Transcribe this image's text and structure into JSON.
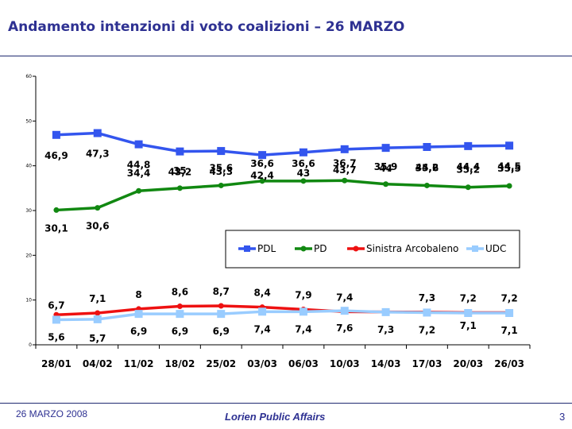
{
  "title": "Andamento intenzioni di voto coalizioni – 26 MARZO",
  "footer": {
    "date": "26 MARZO 2008",
    "brand": "Lorien Public Affairs",
    "page": "3"
  },
  "chart_data": {
    "type": "line",
    "title": "",
    "xlabel": "",
    "ylabel": "",
    "ylim": [
      0,
      60
    ],
    "yticks": [
      "0",
      "10",
      "20",
      "30",
      "40",
      "50",
      "60"
    ],
    "grid": false,
    "legend": "middle",
    "categories": [
      "28/01",
      "04/02",
      "11/02",
      "18/02",
      "25/02",
      "03/03",
      "06/03",
      "10/03",
      "14/03",
      "17/03",
      "20/03",
      "26/03"
    ],
    "series": [
      {
        "name": "PDL",
        "color": "#3355ee",
        "marker": "square",
        "values": [
          46.9,
          47.3,
          44.8,
          43.2,
          43.3,
          42.4,
          43,
          43.7,
          44,
          44.2,
          44.4,
          44.5
        ],
        "labels": [
          "46,9",
          "47,3",
          "44,8",
          "43,2",
          "43,3",
          "42,4",
          "43",
          "43,7",
          "44",
          "44,2",
          "44,4",
          "44,5"
        ]
      },
      {
        "name": "PD",
        "color": "#118811",
        "marker": "circle",
        "values": [
          30.1,
          30.6,
          34.4,
          35,
          35.6,
          36.6,
          36.6,
          36.7,
          35.9,
          35.6,
          35.2,
          35.5
        ],
        "labels": [
          "30,1",
          "30,6",
          "34,4",
          "35",
          "35,6",
          "36,6",
          "36,6",
          "36,7",
          "35,9",
          "35,6",
          "35,2",
          "35,5"
        ]
      },
      {
        "name": "Sinistra Arcobaleno",
        "color": "#ee1111",
        "marker": "circle",
        "values": [
          6.7,
          7.1,
          8,
          8.6,
          8.7,
          8.4,
          7.9,
          7.4,
          null,
          7.3,
          7.2,
          7.2
        ],
        "labels": [
          "6,7",
          "7,1",
          "8",
          "8,6",
          "8,7",
          "8,4",
          "7,9",
          "7,4",
          "",
          "7,3",
          "7,2",
          "7,2"
        ]
      },
      {
        "name": "UDC",
        "color": "#99ccff",
        "marker": "square",
        "values": [
          5.6,
          5.7,
          6.9,
          6.9,
          6.9,
          7.4,
          7.4,
          7.6,
          7.3,
          7.2,
          7.1,
          7.1
        ],
        "labels": [
          "5,6",
          "5,7",
          "6,9",
          "6,9",
          "6,9",
          "7,4",
          "7,4",
          "7,6",
          "7,3",
          "7,2",
          "7,1",
          "7,1"
        ]
      }
    ]
  }
}
